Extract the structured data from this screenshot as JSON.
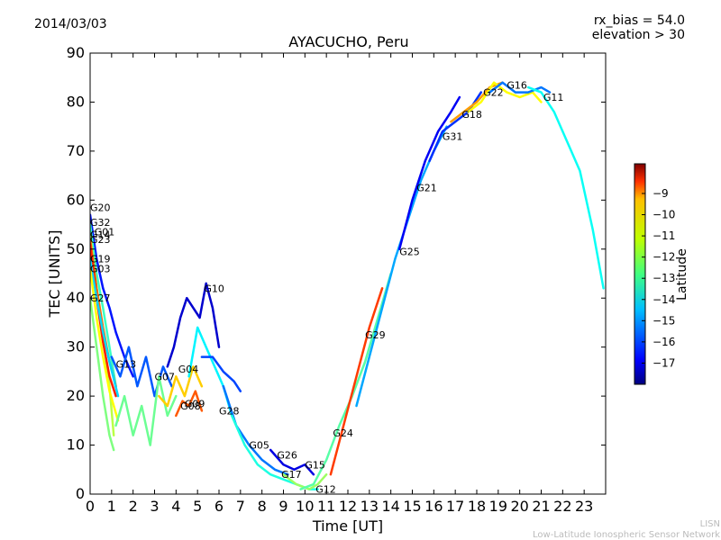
{
  "chart_data": {
    "type": "scatter",
    "date": "2014/03/03",
    "title": "AYACUCHO, Peru",
    "info_lines": [
      "rx_bias = 54.0",
      "elevation > 30"
    ],
    "xlabel": "Time [UT]",
    "ylabel": "TEC [UNITS]",
    "xlim": [
      0,
      24
    ],
    "ylim": [
      0,
      90
    ],
    "xticks": [
      0,
      1,
      2,
      3,
      4,
      5,
      6,
      7,
      8,
      9,
      10,
      11,
      12,
      13,
      14,
      15,
      16,
      17,
      18,
      19,
      20,
      21,
      22,
      23
    ],
    "yticks": [
      0,
      10,
      20,
      30,
      40,
      50,
      60,
      70,
      80,
      90
    ],
    "colorbar": {
      "label": "Latitude",
      "range": [
        -18,
        -7.6
      ],
      "ticks": [
        -9,
        -10,
        -11,
        -12,
        -13,
        -14,
        -15,
        -16,
        -17
      ]
    },
    "satellite_labels": [
      {
        "name": "G20",
        "t": 0.0,
        "tec": 58.5
      },
      {
        "name": "G32",
        "t": 0.0,
        "tec": 55.5
      },
      {
        "name": "G01",
        "t": 0.2,
        "tec": 53.5
      },
      {
        "name": "G14",
        "t": 0.0,
        "tec": 53.0
      },
      {
        "name": "G23",
        "t": 0.0,
        "tec": 52.0
      },
      {
        "name": "G19",
        "t": 0.0,
        "tec": 48.0
      },
      {
        "name": "G03",
        "t": 0.0,
        "tec": 46.0
      },
      {
        "name": "G27",
        "t": 0.0,
        "tec": 40.0
      },
      {
        "name": "G13",
        "t": 1.2,
        "tec": 26.5
      },
      {
        "name": "G07",
        "t": 3.0,
        "tec": 24.0
      },
      {
        "name": "G04",
        "t": 4.1,
        "tec": 25.5
      },
      {
        "name": "G10",
        "t": 5.3,
        "tec": 42.0
      },
      {
        "name": "G09",
        "t": 4.4,
        "tec": 18.5
      },
      {
        "name": "G08",
        "t": 4.2,
        "tec": 18.0
      },
      {
        "name": "G28",
        "t": 6.0,
        "tec": 17.0
      },
      {
        "name": "G05",
        "t": 7.4,
        "tec": 10.0
      },
      {
        "name": "G26",
        "t": 8.7,
        "tec": 8.0
      },
      {
        "name": "G17",
        "t": 8.9,
        "tec": 4.0
      },
      {
        "name": "G15",
        "t": 10.0,
        "tec": 6.0
      },
      {
        "name": "G12",
        "t": 10.5,
        "tec": 1.0
      },
      {
        "name": "G24",
        "t": 11.3,
        "tec": 12.5
      },
      {
        "name": "G29",
        "t": 12.8,
        "tec": 32.5
      },
      {
        "name": "G25",
        "t": 14.4,
        "tec": 49.5
      },
      {
        "name": "G21",
        "t": 15.2,
        "tec": 62.5
      },
      {
        "name": "G31",
        "t": 16.4,
        "tec": 73.0
      },
      {
        "name": "G18",
        "t": 17.3,
        "tec": 77.5
      },
      {
        "name": "G22",
        "t": 18.3,
        "tec": 82.0
      },
      {
        "name": "G16",
        "t": 19.4,
        "tec": 83.5
      },
      {
        "name": "G11",
        "t": 21.1,
        "tec": 81.0
      }
    ],
    "series": [
      {
        "name": "G20",
        "lat": -16.5,
        "t": [
          0.0,
          0.3,
          0.6,
          0.9,
          1.2,
          1.6,
          2.0
        ],
        "tec": [
          57,
          48,
          42,
          38,
          33,
          28,
          24
        ]
      },
      {
        "name": "G32",
        "lat": -13.5,
        "t": [
          0.0,
          0.3,
          0.6,
          0.9,
          1.2
        ],
        "tec": [
          55,
          45,
          38,
          30,
          22
        ]
      },
      {
        "name": "G01",
        "lat": -12.2,
        "t": [
          0.0,
          0.3,
          0.6,
          0.9,
          1.1
        ],
        "tec": [
          53,
          42,
          32,
          22,
          12
        ]
      },
      {
        "name": "G14",
        "lat": -10.0,
        "t": [
          0.0,
          0.3,
          0.6,
          0.9,
          1.2
        ],
        "tec": [
          52,
          42,
          34,
          27,
          22
        ]
      },
      {
        "name": "G23",
        "lat": -9.2,
        "t": [
          0.0,
          0.3,
          0.6,
          0.9,
          1.2
        ],
        "tec": [
          51,
          40,
          31,
          24,
          20
        ]
      },
      {
        "name": "G19",
        "lat": -14.5,
        "t": [
          0.0,
          0.3,
          0.6,
          0.9,
          1.3
        ],
        "tec": [
          48,
          40,
          33,
          27,
          20
        ]
      },
      {
        "name": "G03",
        "lat": -11.5,
        "t": [
          0.0,
          0.3,
          0.6,
          0.9,
          1.3
        ],
        "tec": [
          46,
          36,
          28,
          21,
          15
        ]
      },
      {
        "name": "G27",
        "lat": -12.8,
        "t": [
          0.0,
          0.3,
          0.6,
          0.9,
          1.1
        ],
        "tec": [
          40,
          30,
          20,
          12,
          9
        ]
      },
      {
        "name": "G13",
        "lat": -15.8,
        "t": [
          1.0,
          1.4,
          1.8,
          2.2,
          2.6,
          3.0,
          3.4,
          3.8
        ],
        "tec": [
          28,
          24,
          30,
          22,
          28,
          20,
          26,
          22
        ]
      },
      {
        "name": "G07",
        "lat": -13.0,
        "t": [
          1.2,
          1.6,
          2.0,
          2.4,
          2.8,
          3.2,
          3.6,
          4.0
        ],
        "tec": [
          14,
          20,
          12,
          18,
          10,
          24,
          16,
          20
        ]
      },
      {
        "name": "G04",
        "lat": -11.0,
        "t": [
          3.2,
          3.6,
          4.0,
          4.4,
          4.8,
          5.2
        ],
        "tec": [
          20,
          18,
          24,
          20,
          26,
          22
        ]
      },
      {
        "name": "G10",
        "lat": -17.2,
        "t": [
          3.6,
          3.9,
          4.2,
          4.5,
          4.8,
          5.1,
          5.4,
          5.7,
          6.0
        ],
        "tec": [
          26,
          30,
          36,
          40,
          38,
          36,
          43,
          38,
          30
        ]
      },
      {
        "name": "G08",
        "lat": -9.8,
        "t": [
          4.0,
          4.3,
          4.6,
          4.9,
          5.2
        ],
        "tec": [
          16,
          19,
          18,
          21,
          17
        ]
      },
      {
        "name": "G28",
        "lat": -14.2,
        "t": [
          4.6,
          5.0,
          5.4,
          5.8,
          6.2,
          6.6,
          7.0
        ],
        "tec": [
          24,
          34,
          30,
          26,
          22,
          16,
          12
        ]
      },
      {
        "name": "G05",
        "lat": -16.0,
        "t": [
          5.2,
          5.7,
          6.2,
          6.7,
          7.0
        ],
        "tec": [
          28,
          28,
          25,
          23,
          21
        ]
      },
      {
        "name": "G26",
        "lat": -15.5,
        "t": [
          6.2,
          6.8,
          7.4,
          8.0,
          8.6,
          9.2
        ],
        "tec": [
          22,
          14,
          10,
          7,
          5,
          4
        ]
      },
      {
        "name": "G17",
        "lat": -13.8,
        "t": [
          6.6,
          7.2,
          7.8,
          8.4,
          9.0,
          9.6,
          10.2,
          10.6
        ],
        "tec": [
          16,
          10,
          6,
          4,
          3,
          2,
          1,
          1
        ]
      },
      {
        "name": "G15",
        "lat": -17.0,
        "t": [
          8.4,
          9.0,
          9.5,
          10.0,
          10.4
        ],
        "tec": [
          9,
          6,
          5,
          6,
          4
        ]
      },
      {
        "name": "G12",
        "lat": -12.5,
        "t": [
          9.0,
          9.6,
          10.2,
          10.6,
          11.0
        ],
        "tec": [
          4,
          2,
          1,
          2,
          4
        ]
      },
      {
        "name": "G24",
        "lat": -13.2,
        "t": [
          9.8,
          10.4,
          11.0,
          11.6,
          12.2,
          12.8,
          13.4,
          14.0
        ],
        "tec": [
          1,
          2,
          7,
          14,
          20,
          27,
          36,
          45
        ]
      },
      {
        "name": "G29",
        "lat": -9.5,
        "t": [
          11.2,
          11.8,
          12.4,
          13.0,
          13.6
        ],
        "tec": [
          4,
          14,
          24,
          34,
          42
        ]
      },
      {
        "name": "G25",
        "lat": -15.0,
        "t": [
          12.4,
          13.0,
          13.6,
          14.2,
          14.8,
          15.4,
          16.0,
          16.6
        ],
        "tec": [
          18,
          28,
          38,
          48,
          56,
          64,
          70,
          75
        ]
      },
      {
        "name": "G21",
        "lat": -16.8,
        "t": [
          14.4,
          15.0,
          15.6,
          16.2,
          16.8,
          17.2
        ],
        "tec": [
          50,
          60,
          68,
          74,
          78,
          81
        ]
      },
      {
        "name": "G31",
        "lat": -16.2,
        "t": [
          15.8,
          16.4,
          17.0,
          17.6,
          18.2
        ],
        "tec": [
          68,
          74,
          76,
          78,
          82
        ]
      },
      {
        "name": "G18",
        "lat": -10.5,
        "t": [
          16.8,
          17.4,
          18.0,
          18.6,
          19.2
        ],
        "tec": [
          76,
          78,
          80,
          83,
          84
        ]
      },
      {
        "name": "G22",
        "lat": -11.5,
        "t": [
          17.6,
          18.2,
          18.8,
          19.4,
          20.0,
          20.6,
          21.0
        ],
        "tec": [
          78,
          80,
          84,
          82,
          81,
          82,
          80
        ]
      },
      {
        "name": "G16",
        "lat": -15.5,
        "t": [
          18.6,
          19.2,
          19.8,
          20.4,
          21.0,
          21.4
        ],
        "tec": [
          82,
          84,
          82,
          82,
          83,
          82
        ]
      },
      {
        "name": "G11",
        "lat": -14.0,
        "t": [
          20.4,
          21.0,
          21.6,
          22.2,
          22.8,
          23.4,
          23.9
        ],
        "tec": [
          83,
          82,
          78,
          72,
          66,
          54,
          42
        ]
      }
    ]
  },
  "footer": {
    "line1": "LISN",
    "line2": "Low-Latitude Ionospheric Sensor Network"
  }
}
